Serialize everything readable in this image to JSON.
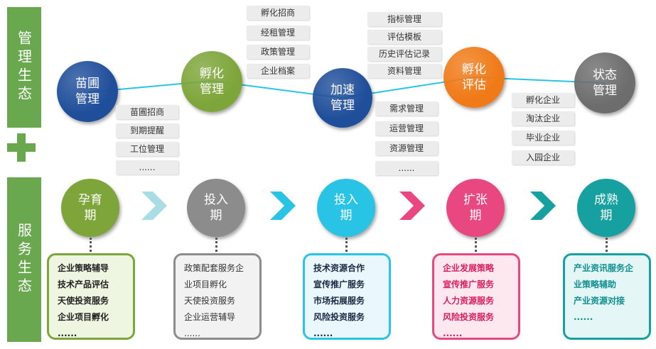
{
  "sidebar": {
    "top_label": "管理生态",
    "bottom_label": "服务生态"
  },
  "management": {
    "nodes": [
      {
        "label": "苗圃\n管理",
        "color": "#1f4e9a"
      },
      {
        "label": "孵化\n管理",
        "color": "#7ea53a"
      },
      {
        "label": "加速\n管理",
        "color": "#1f4e9a"
      },
      {
        "label": "孵化\n评估",
        "color": "#f07a18"
      },
      {
        "label": "状态\n管理",
        "color": "#6d6d6d"
      }
    ],
    "tags_nursery": [
      "苗圃招商",
      "到期提醒",
      "工位管理",
      "......"
    ],
    "tags_incubation": [
      "孵化招商",
      "经租管理",
      "政策管理",
      "企业档案"
    ],
    "tags_acceleration": [
      "需求管理",
      "运营管理",
      "资源管理",
      "......"
    ],
    "tags_evaluation": [
      "指标管理",
      "评估模板",
      "历史评估记录",
      "资料管理"
    ],
    "tags_status": [
      "孵化企业",
      "淘汰企业",
      "毕业企业",
      "入园企业"
    ]
  },
  "service": {
    "stages": [
      {
        "label": "孕育\n期",
        "color": "#7ea53a",
        "items": [
          "企业策略辅导",
          "技术产品评估",
          "天使投资服务",
          "企业项目孵化",
          "......"
        ],
        "border": "#7ea53a",
        "bg": "#eef5e1",
        "text": "#222222"
      },
      {
        "label": "投入\n期",
        "color": "#8c8c8c",
        "items": [
          "政策配套服务企",
          "业项目孵化",
          "天使投资服务",
          "企业运营辅导",
          "......"
        ],
        "border": "#8c8c8c",
        "bg": "#f2f2f2",
        "text": "#333333"
      },
      {
        "label": "投入\n期",
        "color": "#29c3e6",
        "items": [
          "技术资源合作",
          "宣传推广服务",
          "市场拓展服务",
          "风险投资服务",
          "......"
        ],
        "border": "#29c3e6",
        "bg": "#eaf8fd",
        "text": "#1a2a44"
      },
      {
        "label": "扩张\n期",
        "color": "#e8477f",
        "items": [
          "企业发展策略",
          "宣传推广服务",
          "人力资源服务",
          "风险投资服务",
          "......"
        ],
        "border": "#e8477f",
        "bg": "#fde8f0",
        "text": "#d8205e"
      },
      {
        "label": "成熟\n期",
        "color": "#16a0a0",
        "items": [
          "产业资讯服务企",
          "业策略辅助",
          "产业资源对接",
          "......"
        ],
        "border": "#16a0a0",
        "bg": "#e4f6f6",
        "text": "#0f8f8f"
      }
    ],
    "arrow_colors": [
      "#a9dde6",
      "#29c3e6",
      "#e8477f",
      "#16a0a0"
    ]
  }
}
